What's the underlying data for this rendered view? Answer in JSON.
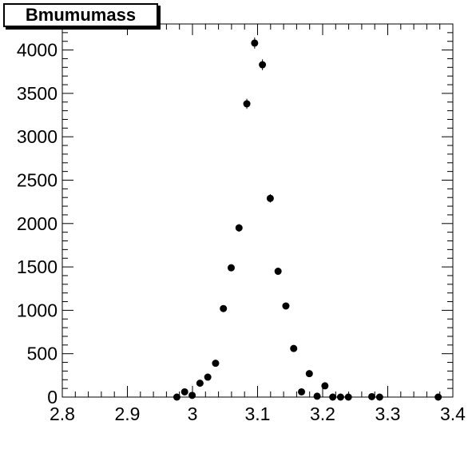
{
  "chart_data": {
    "type": "scatter",
    "title": "Bmumumass",
    "xlabel": "",
    "ylabel": "",
    "xlim": [
      2.8,
      3.4
    ],
    "ylim": [
      0,
      4300
    ],
    "x_ticks": [
      2.8,
      2.9,
      3.0,
      3.1,
      3.2,
      3.3,
      3.4
    ],
    "x_tick_labels": [
      "2.8",
      "2.9",
      "3",
      "3.1",
      "3.2",
      "3.3",
      "3.4"
    ],
    "y_ticks": [
      0,
      500,
      1000,
      1500,
      2000,
      2500,
      3000,
      3500,
      4000
    ],
    "y_tick_labels": [
      "0",
      "500",
      "1000",
      "1500",
      "2000",
      "2500",
      "3000",
      "3500",
      "4000"
    ],
    "grid": false,
    "series": [
      {
        "marker": "circle",
        "color": "#000000",
        "x": [
          2.976,
          2.988,
          2.9995,
          3.0115,
          3.0235,
          3.0355,
          3.0475,
          3.0595,
          3.0715,
          3.0835,
          3.0955,
          3.1075,
          3.1195,
          3.1315,
          3.1435,
          3.1555,
          3.1675,
          3.1795,
          3.1915,
          3.2035,
          3.2155,
          3.2275,
          3.2395,
          3.2755,
          3.2875,
          3.3775
        ],
        "y": [
          0,
          60,
          20,
          160,
          230,
          390,
          1020,
          1490,
          1950,
          3380,
          4080,
          3830,
          2290,
          1450,
          1050,
          560,
          60,
          270,
          10,
          130,
          0,
          0,
          0,
          5,
          0,
          0
        ],
        "yerr": [
          5,
          8,
          5,
          13,
          15,
          20,
          32,
          39,
          44,
          58,
          64,
          62,
          48,
          38,
          32,
          24,
          8,
          16,
          3,
          11,
          0,
          0,
          0,
          2,
          0,
          0
        ]
      }
    ]
  }
}
